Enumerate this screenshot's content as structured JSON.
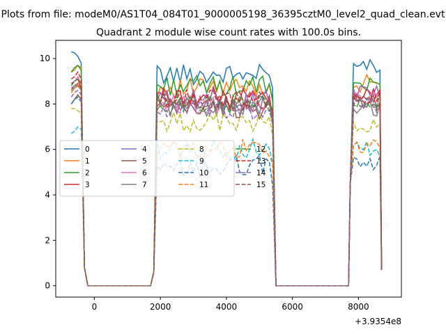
{
  "chart_data": {
    "type": "line",
    "suptitle": "Plots from file: modeM0/AS1T04_084T01_9000005198_36395cztM0_level2_quad_clean.evt",
    "title": "Quadrant 2 module wise count rates with 100.0s bins.",
    "xlabel": "",
    "ylabel": "",
    "x_offset_label": "+3.9354e8",
    "xlim": [
      -1170,
      9300
    ],
    "ylim": [
      -0.5,
      10.8
    ],
    "x_ticks": [
      0,
      2000,
      4000,
      6000,
      8000
    ],
    "x_tick_labels": [
      "0",
      "2000",
      "4000",
      "6000",
      "8000"
    ],
    "y_ticks": [
      0,
      2,
      4,
      6,
      8,
      10
    ],
    "y_tick_labels": [
      "0",
      "2",
      "4",
      "6",
      "8",
      "10"
    ],
    "grid": false,
    "legend": {
      "placement": "center-left",
      "columns": 4
    },
    "colors": [
      "#1f77b4",
      "#ff7f0e",
      "#2ca02c",
      "#d62728",
      "#9467bd",
      "#8c564b",
      "#e377c2",
      "#7f7f7f",
      "#bcbd22",
      "#17becf",
      "#1f77b4",
      "#ff7f0e",
      "#2ca02c",
      "#d62728",
      "#9467bd",
      "#8c564b"
    ],
    "dashed": [
      false,
      false,
      false,
      false,
      false,
      false,
      false,
      false,
      true,
      true,
      true,
      true,
      true,
      true,
      true,
      true
    ],
    "x_segments": [
      [
        -700,
        1800
      ],
      [
        1900,
        5500
      ],
      [
        5550,
        7700
      ],
      [
        7750,
        8700
      ]
    ],
    "series": [
      {
        "name": "0",
        "v1": [
          10.3,
          10.25,
          10.1,
          9.8
        ],
        "lvl": 9.3,
        "v2": [
          9.4,
          9.6,
          9.9,
          9.5
        ],
        "lvl2": 9.6
      },
      {
        "name": "1",
        "v1": [
          9.4,
          9.5,
          9.7,
          9.6
        ],
        "lvl": 8.7,
        "v2": [
          8.5,
          8.7,
          8.9,
          8.8
        ],
        "lvl2": 8.9
      },
      {
        "name": "2",
        "v1": [
          9.4,
          9.6,
          9.7,
          9.5
        ],
        "lvl": 8.8,
        "v2": [
          8.6,
          9.0,
          9.3,
          9.1
        ],
        "lvl2": 9.0
      },
      {
        "name": "3",
        "v1": [
          8.9,
          9.0,
          9.1,
          8.7
        ],
        "lvl": 8.3,
        "v2": [
          8.1,
          8.3,
          8.4,
          8.2
        ],
        "lvl2": 8.4
      },
      {
        "name": "4",
        "v1": [
          8.7,
          8.8,
          8.9,
          8.6
        ],
        "lvl": 8.2,
        "v2": [
          8.2,
          8.5,
          8.7,
          8.5
        ],
        "lvl2": 8.6
      },
      {
        "name": "5",
        "v1": [
          8.0,
          8.2,
          8.4,
          8.2
        ],
        "lvl": 7.8,
        "v2": [
          7.7,
          7.9,
          8.0,
          7.9
        ],
        "lvl2": 8.0
      },
      {
        "name": "6",
        "v1": [
          8.8,
          9.0,
          9.2,
          8.9
        ],
        "lvl": 8.0,
        "v2": [
          7.8,
          8.0,
          8.2,
          8.1
        ],
        "lvl2": 8.1
      },
      {
        "name": "7",
        "v1": [
          8.5,
          8.7,
          8.8,
          8.6
        ],
        "lvl": 7.9,
        "v2": [
          7.6,
          7.8,
          7.9,
          7.8
        ],
        "lvl2": 7.8
      },
      {
        "name": "8",
        "v1": [
          7.8,
          7.8,
          7.7,
          7.6
        ],
        "lvl": 7.2,
        "v2": [
          7.0,
          7.2,
          7.3,
          7.1
        ],
        "lvl2": 7.0
      },
      {
        "name": "9",
        "v1": [
          6.7,
          6.8,
          7.0,
          6.9
        ],
        "lvl": 6.0,
        "v2": [
          6.0,
          6.2,
          6.4,
          6.3
        ],
        "lvl2": 6.1
      },
      {
        "name": "10",
        "v1": [
          8.0,
          8.2,
          8.3,
          8.1
        ],
        "lvl": 5.0,
        "v2": [
          4.9,
          5.1,
          5.3,
          5.2
        ],
        "lvl2": 5.3
      },
      {
        "name": "11",
        "v1": [
          8.5,
          8.7,
          8.9,
          8.6
        ],
        "lvl": 6.0,
        "v2": [
          6.0,
          6.2,
          6.4,
          6.3
        ],
        "lvl2": 6.2
      },
      {
        "name": "12",
        "v1": [
          8.8,
          9.0,
          9.1,
          8.9
        ],
        "lvl": 8.0,
        "v2": [
          7.9,
          8.1,
          8.3,
          8.1
        ],
        "lvl2": 8.2
      },
      {
        "name": "13",
        "v1": [
          9.1,
          9.2,
          9.4,
          9.1
        ],
        "lvl": 8.2,
        "v2": [
          8.0,
          8.2,
          8.4,
          8.2
        ],
        "lvl2": 8.3
      },
      {
        "name": "14",
        "v1": [
          8.3,
          8.5,
          8.6,
          8.4
        ],
        "lvl": 7.7,
        "v2": [
          7.6,
          7.8,
          8.0,
          7.8
        ],
        "lvl2": 7.9
      },
      {
        "name": "15",
        "v1": [
          8.6,
          8.8,
          8.9,
          8.7
        ],
        "lvl": 8.1,
        "v2": [
          7.9,
          8.1,
          8.2,
          8.0
        ],
        "lvl2": 8.1
      }
    ]
  }
}
